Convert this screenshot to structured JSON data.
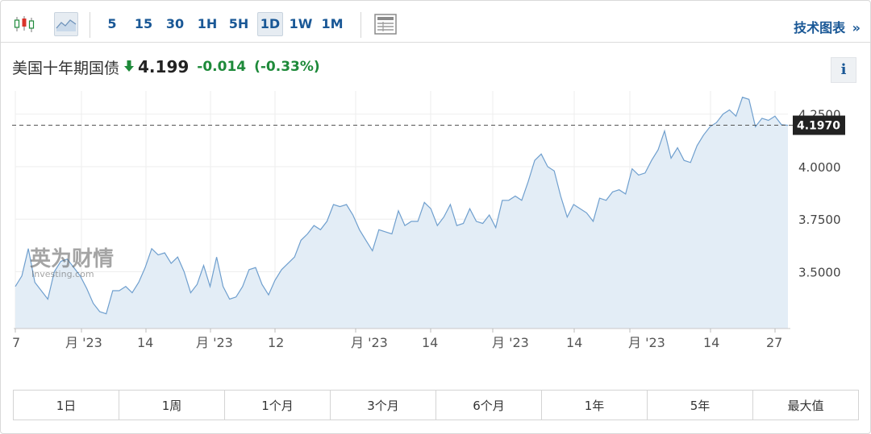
{
  "toolbar": {
    "timeframes": [
      "5",
      "15",
      "30",
      "1H",
      "5H",
      "1D",
      "1W",
      "1M"
    ],
    "active_timeframe": "1D",
    "tech_chart_label": "技术图表",
    "tech_chart_arrow": "»"
  },
  "quote": {
    "name": "美国十年期国债",
    "price": "4.199",
    "change": "-0.014",
    "change_pct": "(-0.33%)",
    "direction": "down",
    "change_color": "#1e8a3a"
  },
  "info_label": "i",
  "watermark": {
    "brand_cn": "英为财情",
    "brand_en": "Investing.com"
  },
  "chart_data": {
    "type": "area",
    "y_ticks": [
      "4.2500",
      "4.0000",
      "3.7500",
      "3.5000"
    ],
    "y_tick_values": [
      4.25,
      4.0,
      3.75,
      3.5
    ],
    "ylim": [
      3.23,
      4.36
    ],
    "current_value_label": "4.1970",
    "current_value": 4.197,
    "x_tick_labels": [
      "7",
      "月 '23",
      "14",
      "月 '23",
      "12",
      "月 '23",
      "14",
      "月 '23",
      "14",
      "月 '23",
      "14",
      "27"
    ],
    "values": [
      3.43,
      3.48,
      3.61,
      3.45,
      3.41,
      3.37,
      3.5,
      3.55,
      3.56,
      3.52,
      3.48,
      3.42,
      3.35,
      3.31,
      3.3,
      3.41,
      3.41,
      3.43,
      3.4,
      3.45,
      3.52,
      3.61,
      3.58,
      3.59,
      3.54,
      3.57,
      3.5,
      3.4,
      3.44,
      3.53,
      3.43,
      3.57,
      3.43,
      3.37,
      3.38,
      3.43,
      3.51,
      3.52,
      3.44,
      3.39,
      3.46,
      3.51,
      3.54,
      3.57,
      3.65,
      3.68,
      3.72,
      3.7,
      3.74,
      3.82,
      3.81,
      3.82,
      3.77,
      3.7,
      3.65,
      3.6,
      3.7,
      3.69,
      3.68,
      3.79,
      3.72,
      3.74,
      3.74,
      3.83,
      3.8,
      3.72,
      3.76,
      3.82,
      3.72,
      3.73,
      3.8,
      3.74,
      3.73,
      3.77,
      3.71,
      3.84,
      3.84,
      3.86,
      3.84,
      3.93,
      4.03,
      4.06,
      4.0,
      3.98,
      3.86,
      3.76,
      3.82,
      3.8,
      3.78,
      3.74,
      3.85,
      3.84,
      3.88,
      3.89,
      3.87,
      3.99,
      3.96,
      3.97,
      4.03,
      4.08,
      4.17,
      4.04,
      4.09,
      4.03,
      4.02,
      4.1,
      4.15,
      4.19,
      4.21,
      4.25,
      4.27,
      4.24,
      4.33,
      4.32,
      4.19,
      4.23,
      4.22,
      4.24,
      4.2,
      4.197
    ]
  }
}
